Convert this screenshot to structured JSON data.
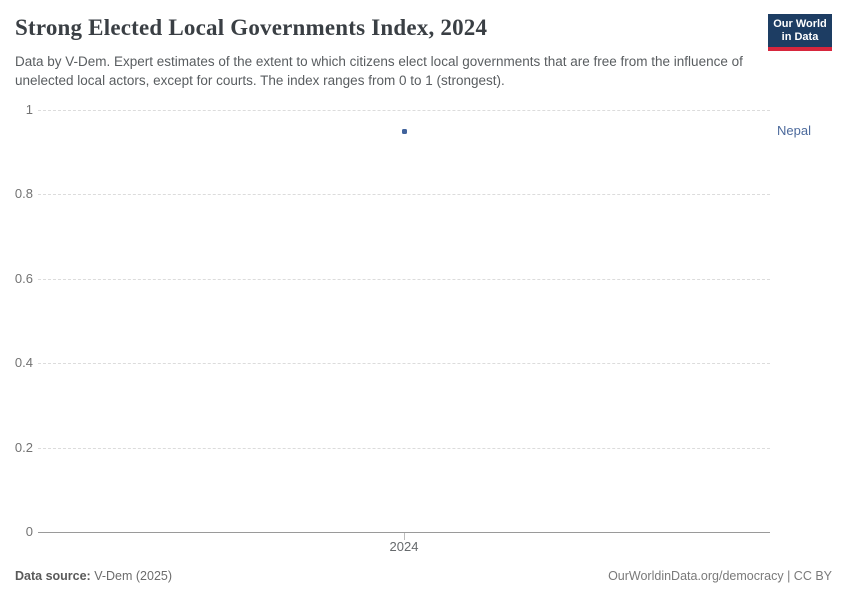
{
  "header": {
    "title": "Strong Elected Local Governments Index, 2024",
    "subtitle": "Data by V-Dem. Expert estimates of the extent to which citizens elect local governments that are free from the influence of unelected local actors, except for courts. The index ranges from 0 to 1 (strongest)."
  },
  "logo": {
    "line1": "Our World",
    "line2": "in Data",
    "bg_color": "#1d3d63",
    "bar_color": "#d7263d"
  },
  "chart_data": {
    "type": "scatter",
    "title": "Strong Elected Local Governments Index, 2024",
    "x": [
      2024
    ],
    "series": [
      {
        "name": "Nepal",
        "values": [
          0.95
        ],
        "color": "#4c6a9c",
        "point_color": "#41639c"
      }
    ],
    "xlabel": "",
    "ylabel": "",
    "ylim": [
      0,
      1
    ],
    "y_ticks": [
      {
        "value": 0,
        "label": "0"
      },
      {
        "value": 0.2,
        "label": "0.2"
      },
      {
        "value": 0.4,
        "label": "0.4"
      },
      {
        "value": 0.6,
        "label": "0.6"
      },
      {
        "value": 0.8,
        "label": "0.8"
      },
      {
        "value": 1,
        "label": "1"
      }
    ],
    "x_ticks": [
      {
        "value": 2024,
        "label": "2024"
      }
    ],
    "grid": "horizontal dashed, zero line solid",
    "legend": "entity label right of plot"
  },
  "footer": {
    "source_label": "Data source:",
    "source_value": " V-Dem (2025)",
    "credit": "OurWorldinData.org/democracy | CC BY"
  },
  "colors": {
    "title": "#3a3f44",
    "subtitle": "#595d60",
    "gridline": "#dcdcdc",
    "axis": "#9a9a9a",
    "tick_label": "#737373"
  }
}
